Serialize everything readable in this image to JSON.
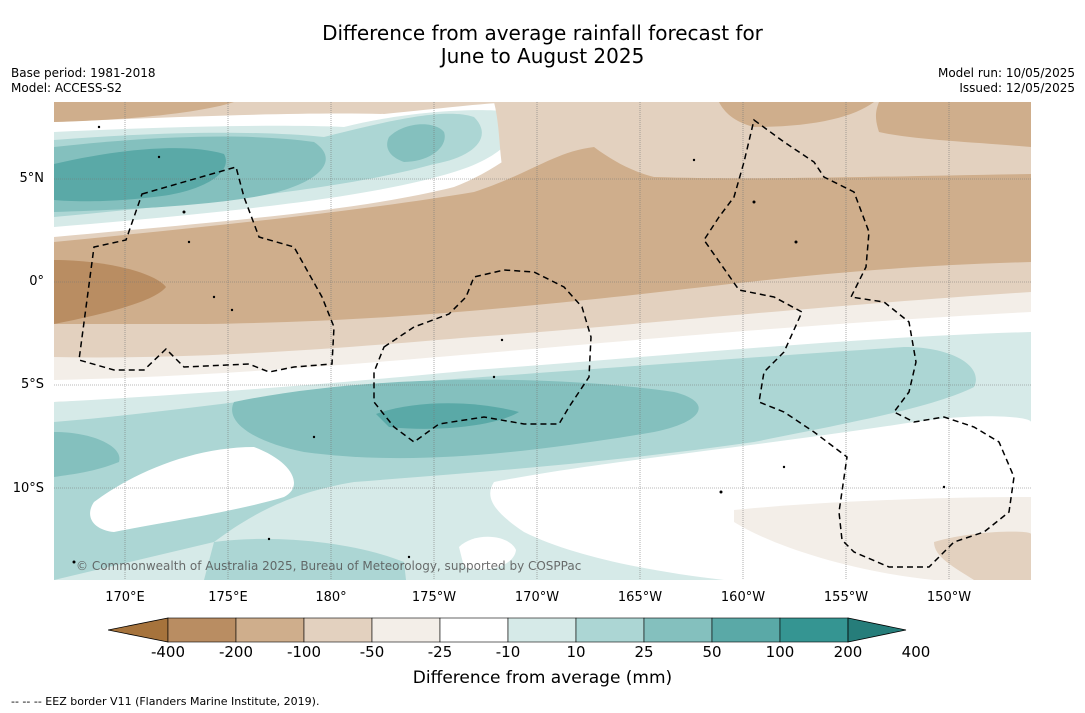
{
  "title_line1": "Difference from average rainfall forecast for",
  "title_line2": "June to August 2025",
  "base_period": "Base period: 1981-2018",
  "model": "Model: ACCESS-S2",
  "model_run": "Model run: 10/05/2025",
  "issued": "Issued: 12/05/2025",
  "lat_labels": [
    "5°N",
    "0°",
    "5°S",
    "10°S"
  ],
  "lon_labels": [
    "170°E",
    "175°E",
    "180°",
    "175°W",
    "170°W",
    "165°W",
    "160°W",
    "155°W",
    "150°W"
  ],
  "credit": "© Commonwealth of Australia 2025, Bureau of Meteorology, supported by COSPPac",
  "colorbar": {
    "title": "Difference from average (mm)",
    "ticks": [
      "-400",
      "-200",
      "-100",
      "-50",
      "-25",
      "-10",
      "10",
      "25",
      "50",
      "100",
      "200",
      "400"
    ],
    "colors": [
      "#a6733c",
      "#b98d62",
      "#cfae8c",
      "#e3d1bf",
      "#f3eee8",
      "#ffffff",
      "#d6eae8",
      "#acd6d4",
      "#84c0be",
      "#5aa9a7",
      "#359592",
      "#267d7a"
    ]
  },
  "footnote": "--  --  -- EEZ border V11 (Flanders Marine Institute, 2019)."
}
